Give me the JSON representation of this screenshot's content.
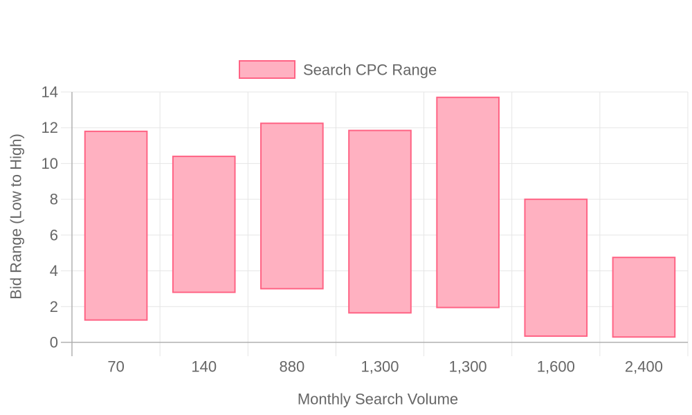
{
  "chart_data": {
    "type": "bar",
    "subtype": "floating-range",
    "categories": [
      "70",
      "140",
      "880",
      "1,300",
      "1,300",
      "1,600",
      "2,400"
    ],
    "series": [
      {
        "name": "Search CPC Range",
        "ranges": [
          [
            1.25,
            11.8
          ],
          [
            2.8,
            10.4
          ],
          [
            3.0,
            12.25
          ],
          [
            1.65,
            11.85
          ],
          [
            1.95,
            13.7
          ],
          [
            0.35,
            8.0
          ],
          [
            0.3,
            4.75
          ]
        ],
        "fill_color": "#ffb1c1",
        "border_color": "#ff6384"
      }
    ],
    "xlabel": "Monthly Search Volume",
    "ylabel": "Bid Range (Low to High)",
    "ylim": [
      0,
      14
    ],
    "yticks": [
      "0",
      "2",
      "4",
      "6",
      "8",
      "10",
      "12",
      "14"
    ],
    "grid": true,
    "legend_position": "top"
  }
}
